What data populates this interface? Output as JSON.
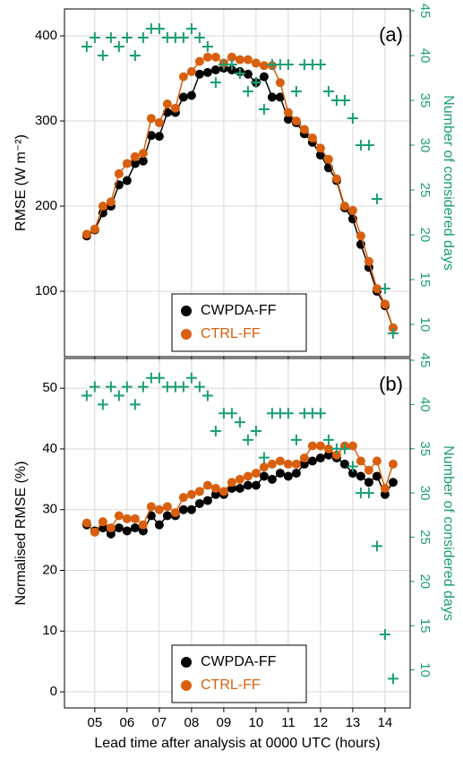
{
  "chart_data": [
    {
      "type": "line",
      "panel_label": "(a)",
      "y_label": "RMSE (W m⁻²)",
      "y2_label": "Number of considered days",
      "x": [
        4.75,
        5,
        5.25,
        5.5,
        5.75,
        6,
        6.25,
        6.5,
        6.75,
        7,
        7.25,
        7.5,
        7.75,
        8,
        8.25,
        8.5,
        8.75,
        9,
        9.25,
        9.5,
        9.75,
        10,
        10.25,
        10.5,
        10.75,
        11,
        11.25,
        11.5,
        11.75,
        12,
        12.25,
        12.5,
        12.75,
        13,
        13.25,
        13.5,
        13.75,
        14,
        14.25
      ],
      "series": [
        {
          "name": "CWPDA-FF",
          "color": "#000000",
          "values": [
            165,
            172,
            192,
            200,
            225,
            230,
            250,
            253,
            283,
            282,
            310,
            310,
            328,
            330,
            355,
            357,
            360,
            362,
            360,
            358,
            355,
            345,
            352,
            328,
            328,
            302,
            298,
            285,
            275,
            260,
            245,
            230,
            198,
            185,
            155,
            128,
            100,
            83,
            57
          ]
        },
        {
          "name": "CTRL-FF",
          "color": "#d95f0e",
          "values": [
            167,
            173,
            200,
            205,
            238,
            250,
            258,
            262,
            303,
            298,
            320,
            315,
            352,
            358,
            370,
            375,
            375,
            368,
            375,
            372,
            372,
            368,
            365,
            365,
            345,
            310,
            300,
            290,
            280,
            268,
            255,
            232,
            200,
            195,
            165,
            135,
            103,
            85,
            57
          ]
        },
        {
          "color": "#1b9e77",
          "axis": "y2",
          "marker": "plus",
          "values": [
            41,
            42,
            40,
            42,
            41,
            42,
            40,
            42,
            43,
            43,
            42,
            42,
            42,
            43,
            42,
            41,
            37,
            39,
            39,
            38,
            36,
            37,
            34,
            39,
            39,
            39,
            36,
            39,
            39,
            39,
            36,
            35,
            35,
            33,
            30,
            30,
            24,
            14,
            9
          ]
        }
      ],
      "xlim": [
        4.06,
        14.78
      ],
      "xticks": [
        5,
        6,
        7,
        8,
        9,
        10,
        11,
        12,
        13,
        14
      ],
      "ylim": [
        23.2,
        431.6
      ],
      "yticks": [
        100,
        200,
        300,
        400
      ],
      "y2lim": [
        6.4,
        45.2
      ],
      "y2ticks": [
        10,
        15,
        20,
        25,
        30,
        35,
        40,
        45
      ],
      "grid": true,
      "legend": "bottom"
    },
    {
      "type": "line",
      "panel_label": "(b)",
      "y_label": "Normalised RMSE (%)",
      "y2_label": "Number of considered days",
      "x_label": "Lead time after analysis at 0000 UTC (hours)",
      "x": [
        4.75,
        5,
        5.25,
        5.5,
        5.75,
        6,
        6.25,
        6.5,
        6.75,
        7,
        7.25,
        7.5,
        7.75,
        8,
        8.25,
        8.5,
        8.75,
        9,
        9.25,
        9.5,
        9.75,
        10,
        10.25,
        10.5,
        10.75,
        11,
        11.25,
        11.5,
        11.75,
        12,
        12.25,
        12.5,
        12.75,
        13,
        13.25,
        13.5,
        13.75,
        14,
        14.25
      ],
      "series": [
        {
          "name": "CWPDA-FF",
          "color": "#000000",
          "values": [
            27.5,
            26.5,
            27,
            26,
            27,
            26.5,
            27,
            26.5,
            29,
            27.5,
            29,
            29,
            30,
            30,
            31,
            31.5,
            32.5,
            32.5,
            33.5,
            33.5,
            34,
            34,
            35.5,
            35,
            36,
            35.5,
            36,
            37.5,
            38,
            38.5,
            39,
            38.5,
            37.5,
            36,
            35.5,
            34.5,
            35.5,
            32.5,
            34.5
          ]
        },
        {
          "name": "CTRL-FF",
          "color": "#d95f0e",
          "values": [
            27.8,
            26.3,
            28,
            27,
            29,
            28.5,
            28.5,
            27.5,
            30.5,
            30,
            30.5,
            29.5,
            32,
            32.5,
            33,
            34,
            33.5,
            33,
            34.5,
            35,
            35.5,
            36,
            37,
            37.5,
            38,
            37.5,
            37.5,
            38.5,
            40.5,
            40.5,
            40,
            39,
            40.5,
            40.5,
            38,
            36.5,
            38,
            33.5,
            37.5
          ]
        },
        {
          "color": "#1b9e77",
          "axis": "y2",
          "marker": "plus",
          "values": [
            41,
            42,
            40,
            42,
            41,
            42,
            40,
            42,
            43,
            43,
            42,
            42,
            42,
            43,
            42,
            41,
            37,
            39,
            39,
            38,
            36,
            37,
            34,
            39,
            39,
            39,
            36,
            39,
            39,
            39,
            36,
            35,
            35,
            33,
            30,
            30,
            24,
            14,
            9
          ]
        }
      ],
      "xlim": [
        4.06,
        14.78
      ],
      "xticks": [
        {
          "value": 5,
          "label": "05"
        },
        {
          "value": 6,
          "label": "06"
        },
        {
          "value": 7,
          "label": "07"
        },
        {
          "value": 8,
          "label": "08"
        },
        {
          "value": 9,
          "label": "09"
        },
        {
          "value": 10,
          "label": "10"
        },
        {
          "value": 11,
          "label": "11"
        },
        {
          "value": 12,
          "label": "12"
        },
        {
          "value": 13,
          "label": "13"
        },
        {
          "value": 14,
          "label": "14"
        }
      ],
      "ylim": [
        -2.65,
        54.9
      ],
      "yticks": [
        0,
        10,
        20,
        30,
        40,
        50
      ],
      "y2lim": [
        5.7,
        45.2
      ],
      "y2ticks": [
        10,
        15,
        20,
        25,
        30,
        35,
        40,
        45
      ],
      "grid": true,
      "legend": "bottom"
    }
  ]
}
